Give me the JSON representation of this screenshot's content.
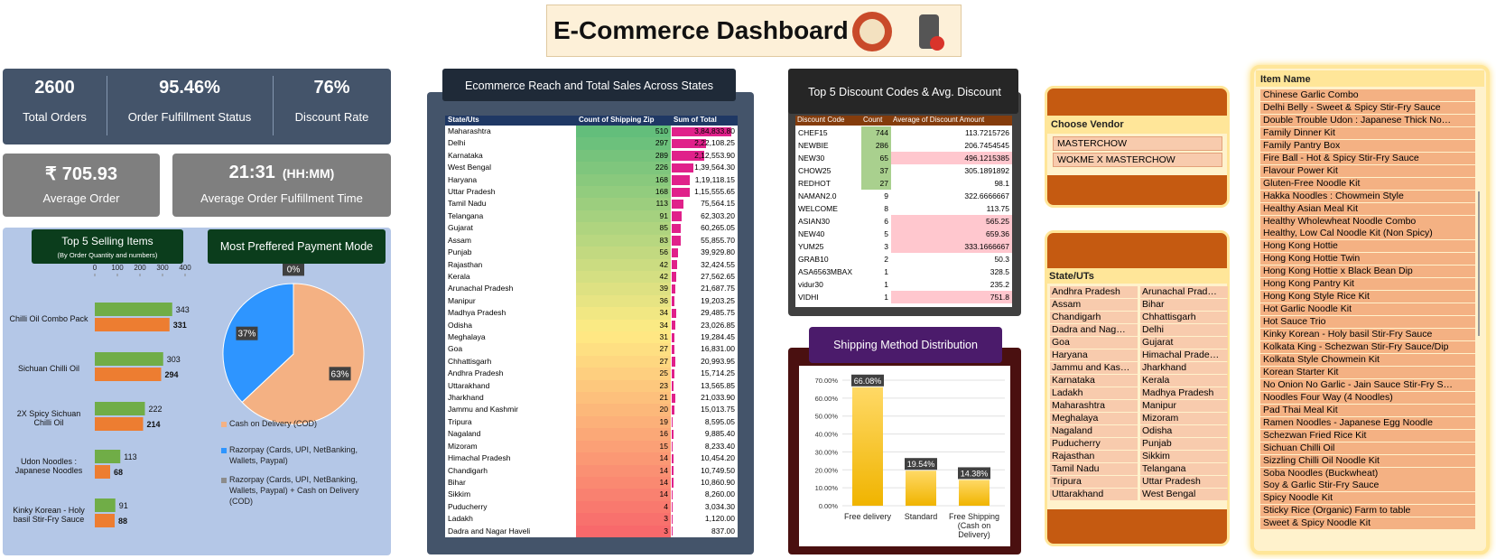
{
  "header": {
    "title": "E-Commerce Dashboard"
  },
  "kpis": [
    {
      "value": "2600",
      "label": "Total Orders"
    },
    {
      "value": "95.46%",
      "label": "Order Fulfillment Status"
    },
    {
      "value": "76%",
      "label": "Discount Rate"
    },
    {
      "currency": "₹",
      "value": "705.93",
      "label": "Average Order"
    },
    {
      "value": "21:31",
      "unit": "(HH:MM)",
      "label": "Average Order Fulfillment Time"
    }
  ],
  "chart_data": [
    {
      "type": "hbar",
      "title": "Top 5 Selling Items",
      "subtitle": "(By Order Quantity and numbers)",
      "categories": [
        "Chilli Oil Combo Pack",
        "Sichuan Chilli Oil",
        "2X Spicy Sichuan Chilli Oil",
        "Udon Noodles : Japanese Noodles",
        "Kinky Korean - Holy basil Stir-Fry Sauce"
      ],
      "series": [
        {
          "color": "#70ad47",
          "values": [
            343,
            303,
            222,
            113,
            91
          ]
        },
        {
          "color": "#ed7d31",
          "values": [
            331,
            294,
            214,
            68,
            88
          ]
        }
      ],
      "xlim": [
        0,
        400
      ],
      "xticks": [
        0,
        100,
        200,
        300,
        400
      ]
    },
    {
      "type": "pie",
      "title": "Most  Preffered Payment Mode",
      "categories": [
        "Cash on Delivery (COD)",
        "Razorpay (Cards, UPI, NetBanking, Wallets, Paypal)",
        "Razorpay (Cards, UPI, NetBanking, Wallets, Paypal) + Cash on Delivery (COD)"
      ],
      "values": [
        63,
        37,
        0
      ],
      "value_labels": [
        "63%",
        "37%",
        "0%"
      ],
      "colors": [
        "#f4b183",
        "#2e95ff",
        "#8c8c8c"
      ]
    },
    {
      "type": "bar",
      "title": "Shipping Method Distribution",
      "categories": [
        "Free delivery",
        "Standard",
        "Free Shipping (Cash on Delivery)"
      ],
      "values": [
        66.08,
        19.54,
        14.38
      ],
      "value_labels": [
        "66.08%",
        "19.54%",
        "14.38%"
      ],
      "color": "#f5c518",
      "ylim": [
        0,
        70
      ],
      "yticks": [
        {
          "value": 0,
          "label": "0.00%"
        },
        {
          "value": 10,
          "label": "10.00%"
        },
        {
          "value": 20,
          "label": "20.00%"
        },
        {
          "value": 30,
          "label": "30.00%"
        },
        {
          "value": 40,
          "label": "40.00%"
        },
        {
          "value": 50,
          "label": "50.00%"
        },
        {
          "value": 60,
          "label": "60.00%"
        },
        {
          "value": 70,
          "label": "70.00%"
        }
      ],
      "grid": true
    }
  ],
  "state_sales": {
    "title": "Ecommerce Reach and Total Sales Across States",
    "headers": [
      "State/Uts",
      "Count of Shipping Zip",
      "Sum of Total"
    ],
    "rows": [
      {
        "state": "Maharashtra",
        "count": 510,
        "total": {
          "value": 384833.8,
          "label": "3,84,833.80"
        }
      },
      {
        "state": "Delhi",
        "count": 297,
        "total": {
          "value": 222108.25,
          "label": "2,22,108.25"
        }
      },
      {
        "state": "Karnataka",
        "count": 289,
        "total": {
          "value": 212553.9,
          "label": "2,12,553.90"
        }
      },
      {
        "state": "West Bengal",
        "count": 226,
        "total": {
          "value": 139564.3,
          "label": "1,39,564.30"
        }
      },
      {
        "state": "Haryana",
        "count": 168,
        "total": {
          "value": 119118.15,
          "label": "1,19,118.15"
        }
      },
      {
        "state": "Uttar Pradesh",
        "count": 168,
        "total": {
          "value": 115555.65,
          "label": "1,15,555.65"
        }
      },
      {
        "state": "Tamil Nadu",
        "count": 113,
        "total": {
          "value": 75564.15,
          "label": "75,564.15"
        }
      },
      {
        "state": "Telangana",
        "count": 91,
        "total": {
          "value": 62303.2,
          "label": "62,303.20"
        }
      },
      {
        "state": "Gujarat",
        "count": 85,
        "total": {
          "value": 60265.05,
          "label": "60,265.05"
        }
      },
      {
        "state": "Assam",
        "count": 83,
        "total": {
          "value": 55855.7,
          "label": "55,855.70"
        }
      },
      {
        "state": "Punjab",
        "count": 56,
        "total": {
          "value": 39929.8,
          "label": "39,929.80"
        }
      },
      {
        "state": "Rajasthan",
        "count": 42,
        "total": {
          "value": 32424.55,
          "label": "32,424.55"
        }
      },
      {
        "state": "Kerala",
        "count": 42,
        "total": {
          "value": 27562.65,
          "label": "27,562.65"
        }
      },
      {
        "state": "Arunachal Pradesh",
        "count": 39,
        "total": {
          "value": 21687.75,
          "label": "21,687.75"
        }
      },
      {
        "state": "Manipur",
        "count": 36,
        "total": {
          "value": 19203.25,
          "label": "19,203.25"
        }
      },
      {
        "state": "Madhya Pradesh",
        "count": 34,
        "total": {
          "value": 29485.75,
          "label": "29,485.75"
        }
      },
      {
        "state": "Odisha",
        "count": 34,
        "total": {
          "value": 23026.85,
          "label": "23,026.85"
        }
      },
      {
        "state": "Meghalaya",
        "count": 31,
        "total": {
          "value": 19284.45,
          "label": "19,284.45"
        }
      },
      {
        "state": "Goa",
        "count": 27,
        "total": {
          "value": 16831.0,
          "label": "16,831.00"
        }
      },
      {
        "state": "Chhattisgarh",
        "count": 27,
        "total": {
          "value": 20993.95,
          "label": "20,993.95"
        }
      },
      {
        "state": "Andhra Pradesh",
        "count": 25,
        "total": {
          "value": 15714.25,
          "label": "15,714.25"
        }
      },
      {
        "state": "Uttarakhand",
        "count": 23,
        "total": {
          "value": 13565.85,
          "label": "13,565.85"
        }
      },
      {
        "state": "Jharkhand",
        "count": 21,
        "total": {
          "value": 21033.9,
          "label": "21,033.90"
        }
      },
      {
        "state": "Jammu and Kashmir",
        "count": 20,
        "total": {
          "value": 15013.75,
          "label": "15,013.75"
        }
      },
      {
        "state": "Tripura",
        "count": 19,
        "total": {
          "value": 8595.05,
          "label": "8,595.05"
        }
      },
      {
        "state": "Nagaland",
        "count": 16,
        "total": {
          "value": 9885.4,
          "label": "9,885.40"
        }
      },
      {
        "state": "Mizoram",
        "count": 15,
        "total": {
          "value": 8233.4,
          "label": "8,233.40"
        }
      },
      {
        "state": "Himachal Pradesh",
        "count": 14,
        "total": {
          "value": 10454.2,
          "label": "10,454.20"
        }
      },
      {
        "state": "Chandigarh",
        "count": 14,
        "total": {
          "value": 10749.5,
          "label": "10,749.50"
        }
      },
      {
        "state": "Bihar",
        "count": 14,
        "total": {
          "value": 10860.9,
          "label": "10,860.90"
        }
      },
      {
        "state": "Sikkim",
        "count": 14,
        "total": {
          "value": 8260.0,
          "label": "8,260.00"
        }
      },
      {
        "state": "Puducherry",
        "count": 4,
        "total": {
          "value": 3034.3,
          "label": "3,034.30"
        }
      },
      {
        "state": "Ladakh",
        "count": 3,
        "total": {
          "value": 1120.0,
          "label": "1,120.00"
        }
      },
      {
        "state": "Dadra and Nagar Haveli",
        "count": 3,
        "total": {
          "value": 837.0,
          "label": "837.00"
        }
      }
    ]
  },
  "discount_codes": {
    "title": "Top 5 Discount Codes & Avg. Discount",
    "headers": [
      "Discount Code",
      "Count",
      "Average of Discount Amount"
    ],
    "rows": [
      {
        "code": "CHEF15",
        "count": 744,
        "avg": 113.7215726
      },
      {
        "code": "NEWBIE",
        "count": 286,
        "avg": 206.7454545
      },
      {
        "code": "NEW30",
        "count": 65,
        "avg": 496.1215385
      },
      {
        "code": "CHOW25",
        "count": 37,
        "avg": 305.1891892
      },
      {
        "code": "REDHOT",
        "count": 27,
        "avg": 98.1
      },
      {
        "code": "NAMAN2.0",
        "count": 9,
        "avg": 322.6666667
      },
      {
        "code": "WELCOME",
        "count": 8,
        "avg": 113.75
      },
      {
        "code": "ASIAN30",
        "count": 6,
        "avg": 565.25
      },
      {
        "code": "NEW40",
        "count": 5,
        "avg": 659.36
      },
      {
        "code": "YUM25",
        "count": 3,
        "avg": 333.1666667
      },
      {
        "code": "GRAB10",
        "count": 2,
        "avg": 50.3
      },
      {
        "code": "ASA6563MBAX",
        "count": 1,
        "avg": 328.5
      },
      {
        "code": "vidur30",
        "count": 1,
        "avg": 235.2
      },
      {
        "code": "VIDHI",
        "count": 1,
        "avg": 751.8
      }
    ]
  },
  "vendor_filter": {
    "title": "Choose Vendor",
    "items": [
      "MASTERCHOW",
      "WOKME X MASTERCHOW"
    ]
  },
  "state_filter": {
    "title": "State/UTs",
    "items": [
      "Andhra Pradesh",
      "Arunachal Prad…",
      "Assam",
      "Bihar",
      "Chandigarh",
      "Chhattisgarh",
      "Dadra and Nag…",
      "Delhi",
      "Goa",
      "Gujarat",
      "Haryana",
      "Himachal Prade…",
      "Jammu and Kas…",
      "Jharkhand",
      "Karnataka",
      "Kerala",
      "Ladakh",
      "Madhya Pradesh",
      "Maharashtra",
      "Manipur",
      "Meghalaya",
      "Mizoram",
      "Nagaland",
      "Odisha",
      "Puducherry",
      "Punjab",
      "Rajasthan",
      "Sikkim",
      "Tamil Nadu",
      "Telangana",
      "Tripura",
      "Uttar Pradesh",
      "Uttarakhand",
      "West Bengal"
    ]
  },
  "item_filter": {
    "title": "Item Name",
    "items": [
      "Chinese Garlic Combo",
      "Delhi Belly - Sweet & Spicy Stir-Fry Sauce",
      "Double Trouble Udon : Japanese Thick No…",
      "Family Dinner Kit",
      "Family Pantry Box",
      "Fire Ball - Hot & Spicy Stir-Fry Sauce",
      "Flavour Power Kit",
      "Gluten-Free Noodle Kit",
      "Hakka Noodles : Chowmein Style",
      "Healthy Asian Meal Kit",
      "Healthy Wholewheat Noodle Combo",
      "Healthy, Low Cal Noodle Kit (Non Spicy)",
      "Hong Kong Hottie",
      "Hong Kong Hottie Twin",
      "Hong Kong Hottie x Black Bean Dip",
      "Hong Kong Pantry Kit",
      "Hong Kong Style Rice Kit",
      "Hot Garlic Noodle Kit",
      "Hot Sauce Trio",
      "Kinky Korean - Holy basil Stir-Fry Sauce",
      "Kolkata King - Schezwan Stir-Fry Sauce/Dip",
      "Kolkata Style Chowmein Kit",
      "Korean Starter Kit",
      "No Onion No Garlic - Jain Sauce Stir-Fry S…",
      "Noodles Four Way (4 Noodles)",
      "Pad Thai Meal Kit",
      "Ramen Noodles - Japanese Egg Noodle",
      "Schezwan Fried Rice Kit",
      "Sichuan Chilli Oil",
      "Sizzling Chilli Oil Noodle Kit",
      "Soba Noodles (Buckwheat)",
      "Soy & Garlic Stir-Fry Sauce",
      "Spicy Noodle Kit",
      "Sticky Rice (Organic) Farm to table",
      "Sweet & Spicy Noodle Kit"
    ]
  }
}
